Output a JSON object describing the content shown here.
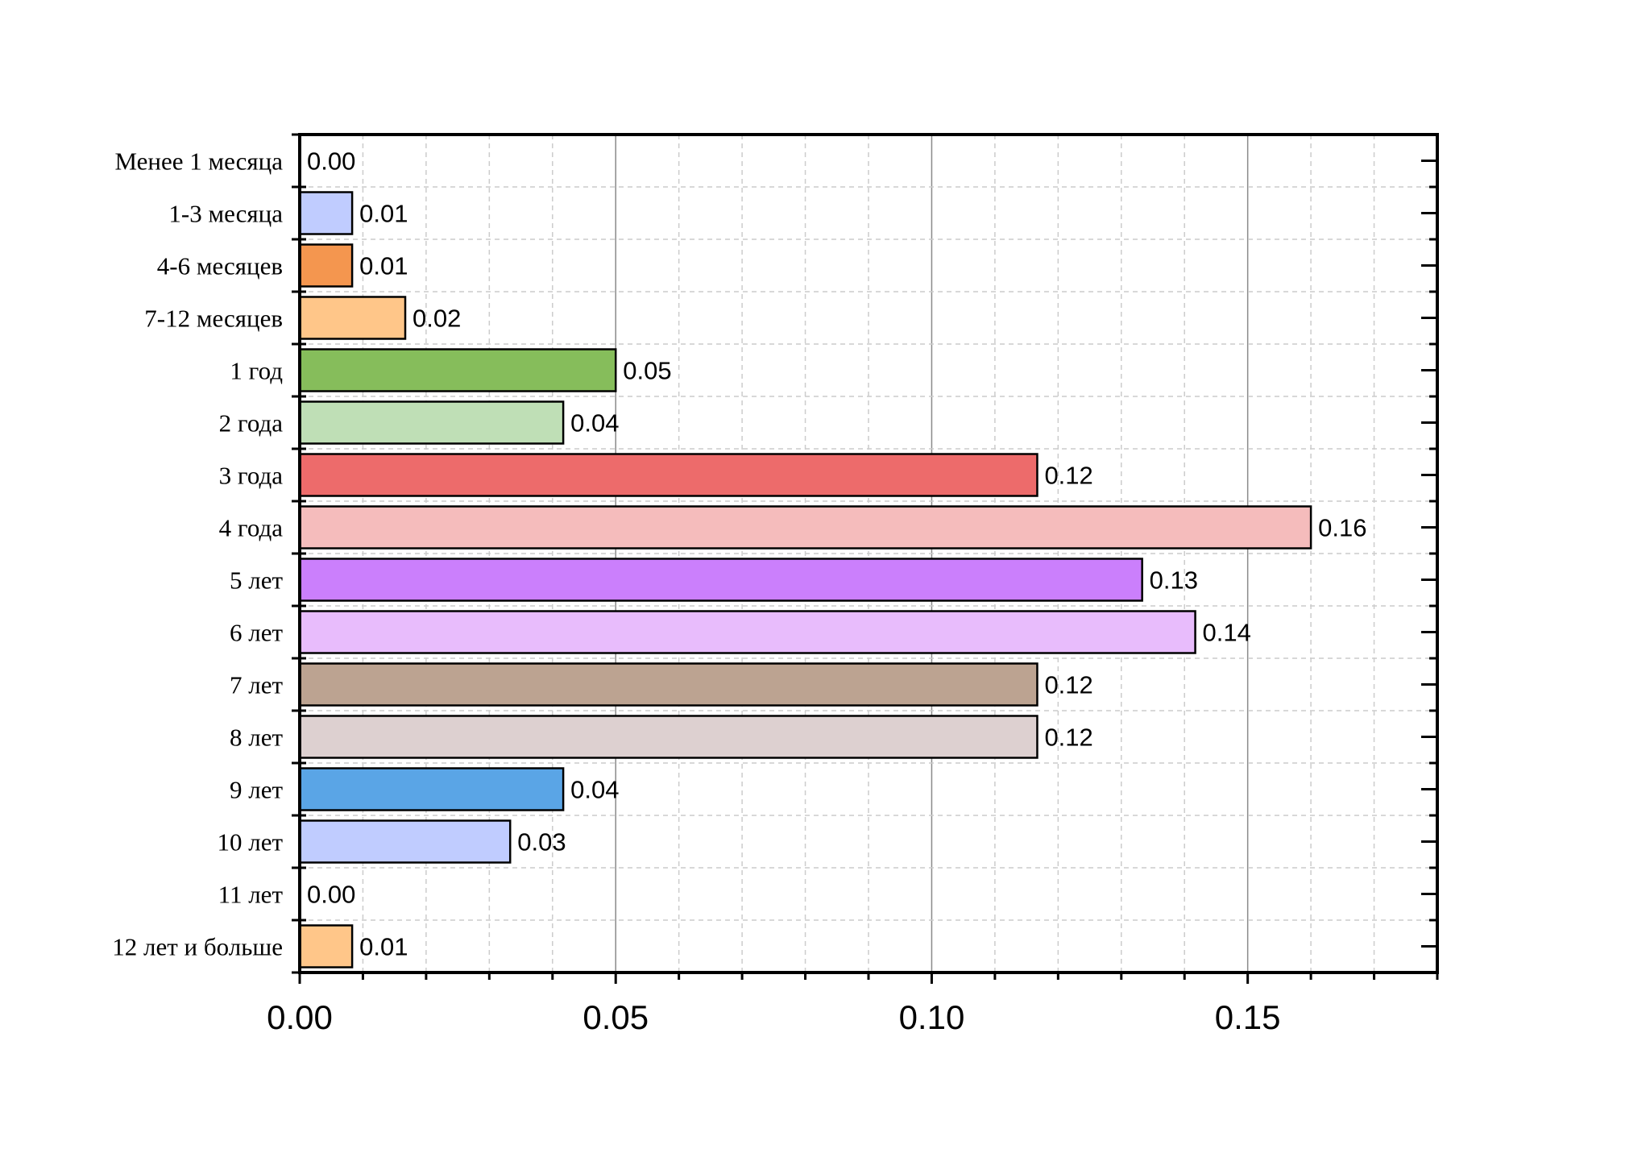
{
  "chart_data": {
    "type": "bar",
    "orientation": "horizontal",
    "title": "",
    "xlabel": "",
    "ylabel": "",
    "xlim": [
      0,
      0.18
    ],
    "x_ticks": [
      "0.00",
      "0.05",
      "0.10",
      "0.15"
    ],
    "grid": true,
    "legend": "none",
    "categories": [
      "Менее 1 месяца",
      "1-3 месяца",
      "4-6 месяцев",
      "7-12 месяцев",
      "1 год",
      "2 года",
      "3 года",
      "4 года",
      "5 лет",
      "6 лет",
      "7 лет",
      "8 лет",
      "9 лет",
      "10 лет",
      "11 лет",
      "12 лет и больше"
    ],
    "values": [
      0.0,
      0.0083,
      0.0083,
      0.0167,
      0.05,
      0.0417,
      0.1167,
      0.16,
      0.1333,
      0.1417,
      0.1167,
      0.1167,
      0.0417,
      0.0333,
      0.0,
      0.0083
    ],
    "value_labels": [
      "0.00",
      "0.01",
      "0.01",
      "0.02",
      "0.05",
      "0.04",
      "0.12",
      "0.16",
      "0.13",
      "0.14",
      "0.12",
      "0.12",
      "0.04",
      "0.03",
      "0.00",
      "0.01"
    ],
    "colors": [
      "#c0ccff",
      "#c0ccff",
      "#f4964f",
      "#ffc689",
      "#86bd5b",
      "#bfdfb6",
      "#ed6b6b",
      "#f5bcbc",
      "#cb7ffc",
      "#e8bcfc",
      "#bca391",
      "#ddd0d0",
      "#5aa5e6",
      "#c0ccff",
      "#c0ccff",
      "#ffc689"
    ]
  }
}
